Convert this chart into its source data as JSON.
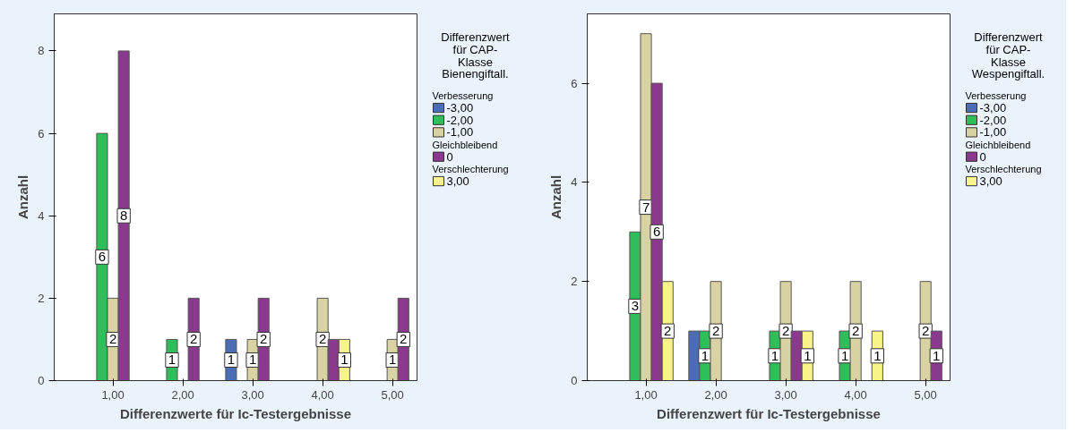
{
  "chart_data": [
    {
      "type": "bar",
      "xlabel": "Differenzwerte für Ic-Testergebnisse",
      "ylabel": "Anzahl",
      "legend_title": "Differenzwert\nfür CAP-\nKlasse\nBienengiftall.",
      "legend": "right",
      "grid": false,
      "categories": [
        "1,00",
        "2,00",
        "3,00",
        "4,00",
        "5,00"
      ],
      "ylim": [
        0,
        8.9
      ],
      "yticks": [
        0,
        2,
        4,
        6,
        8
      ],
      "annotations": [
        "Verbesserung",
        "Gleichbleibend",
        "Verschlechterung"
      ],
      "series": [
        {
          "name": "-3,00",
          "color": "#4a6db5",
          "values": [
            null,
            null,
            1,
            null,
            null
          ],
          "value_labels": [
            null,
            null,
            "1",
            null,
            null
          ]
        },
        {
          "name": "-2,00",
          "color": "#2fbe5a",
          "values": [
            6,
            1,
            null,
            null,
            null
          ],
          "value_labels": [
            "6",
            "1",
            null,
            null,
            null
          ]
        },
        {
          "name": "-1,00",
          "color": "#d9d3a3",
          "values": [
            2,
            null,
            1,
            2,
            1
          ],
          "value_labels": [
            "2",
            null,
            "1",
            "2",
            "1"
          ]
        },
        {
          "name": "0",
          "color": "#8a3a8c",
          "values": [
            8,
            2,
            2,
            1,
            2
          ],
          "value_labels": [
            "8",
            "2",
            "2",
            null,
            "2"
          ]
        },
        {
          "name": "3,00",
          "color": "#f8f38a",
          "values": [
            null,
            null,
            null,
            1,
            null
          ],
          "value_labels": [
            null,
            null,
            null,
            "1",
            null
          ]
        }
      ]
    },
    {
      "type": "bar",
      "xlabel": "Differenzwert für Ic-Testergebnisse",
      "ylabel": "Anzahl",
      "legend_title": "Differenzwert\nfür CAP-\nKlasse\nWespengiftall.",
      "legend": "right",
      "grid": false,
      "categories": [
        "1,00",
        "2,00",
        "3,00",
        "4,00",
        "5,00"
      ],
      "ylim": [
        0,
        7.4
      ],
      "yticks": [
        0,
        2,
        4,
        6
      ],
      "annotations": [
        "Verbesserung",
        "Gleichbleibend",
        "Verschlechterung"
      ],
      "series": [
        {
          "name": "-3,00",
          "color": "#4a6db5",
          "values": [
            null,
            1,
            null,
            null,
            null
          ],
          "value_labels": [
            null,
            null,
            null,
            null,
            null
          ]
        },
        {
          "name": "-2,00",
          "color": "#2fbe5a",
          "values": [
            3,
            1,
            1,
            1,
            null
          ],
          "value_labels": [
            "3",
            "1",
            "1",
            "1",
            null
          ]
        },
        {
          "name": "-1,00",
          "color": "#d9d3a3",
          "values": [
            7,
            2,
            2,
            2,
            2
          ],
          "value_labels": [
            "7",
            "2",
            "2",
            "2",
            "2"
          ]
        },
        {
          "name": "0",
          "color": "#8a3a8c",
          "values": [
            6,
            null,
            1,
            null,
            1
          ],
          "value_labels": [
            "6",
            null,
            null,
            null,
            "1"
          ]
        },
        {
          "name": "3,00",
          "color": "#f8f38a",
          "values": [
            2,
            null,
            1,
            1,
            null
          ],
          "value_labels": [
            "2",
            null,
            "1",
            "1",
            null
          ]
        }
      ]
    }
  ]
}
